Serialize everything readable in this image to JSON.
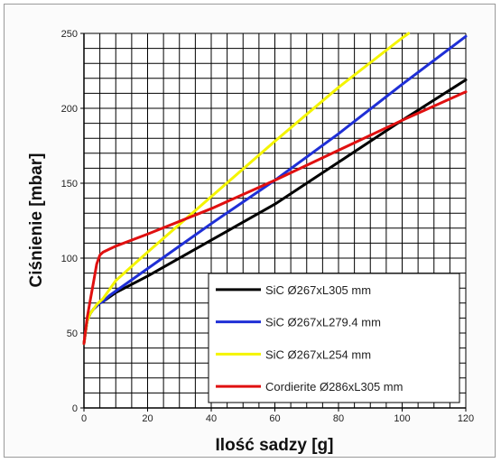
{
  "chart_data": {
    "type": "line",
    "title": "",
    "xlabel": "Ilość sadzy [g]",
    "ylabel": "Ciśnienie [mbar]",
    "xlim": [
      0,
      120
    ],
    "ylim": [
      0,
      250
    ],
    "x_ticks": [
      "0",
      "20",
      "40",
      "60",
      "80",
      "100",
      "120"
    ],
    "y_ticks": [
      "0",
      "50",
      "100",
      "150",
      "200",
      "250"
    ],
    "grid": true,
    "legend_position": "bottom-right",
    "series": [
      {
        "name": "SiC Ø267xL305 mm",
        "color": "#000000",
        "x": [
          0,
          1,
          2,
          3,
          4,
          5,
          6,
          8,
          10,
          20,
          40,
          60,
          80,
          100,
          120
        ],
        "y": [
          43,
          58,
          63,
          66,
          68,
          70,
          71,
          74,
          77,
          88,
          112,
          136,
          164,
          192,
          219
        ]
      },
      {
        "name": "SiC Ø267xL279.4 mm",
        "color": "#1f2fd6",
        "x": [
          0,
          1,
          2,
          3,
          4,
          5,
          6,
          8,
          10,
          20,
          40,
          60,
          80,
          100,
          120
        ],
        "y": [
          43,
          58,
          63,
          66,
          68,
          70,
          71,
          75,
          78,
          93,
          123,
          152,
          183,
          216,
          248
        ]
      },
      {
        "name": "SiC Ø267xL254 mm",
        "color": "#f4f400",
        "x": [
          0,
          1,
          2,
          3,
          4,
          5,
          6,
          8,
          10,
          20,
          40,
          60,
          80,
          100,
          102
        ],
        "y": [
          43,
          58,
          63,
          66,
          69,
          71,
          73,
          79,
          85,
          104,
          141,
          178,
          214,
          247,
          250
        ]
      },
      {
        "name": "Cordierite Ø286xL305 mm",
        "color": "#e01010",
        "x": [
          0,
          1,
          2,
          3,
          4,
          5,
          6,
          8,
          10,
          20,
          40,
          60,
          80,
          100,
          120
        ],
        "y": [
          43,
          60,
          72,
          84,
          96,
          102,
          104,
          106,
          108,
          116,
          133,
          152,
          172,
          192,
          211
        ]
      }
    ]
  }
}
